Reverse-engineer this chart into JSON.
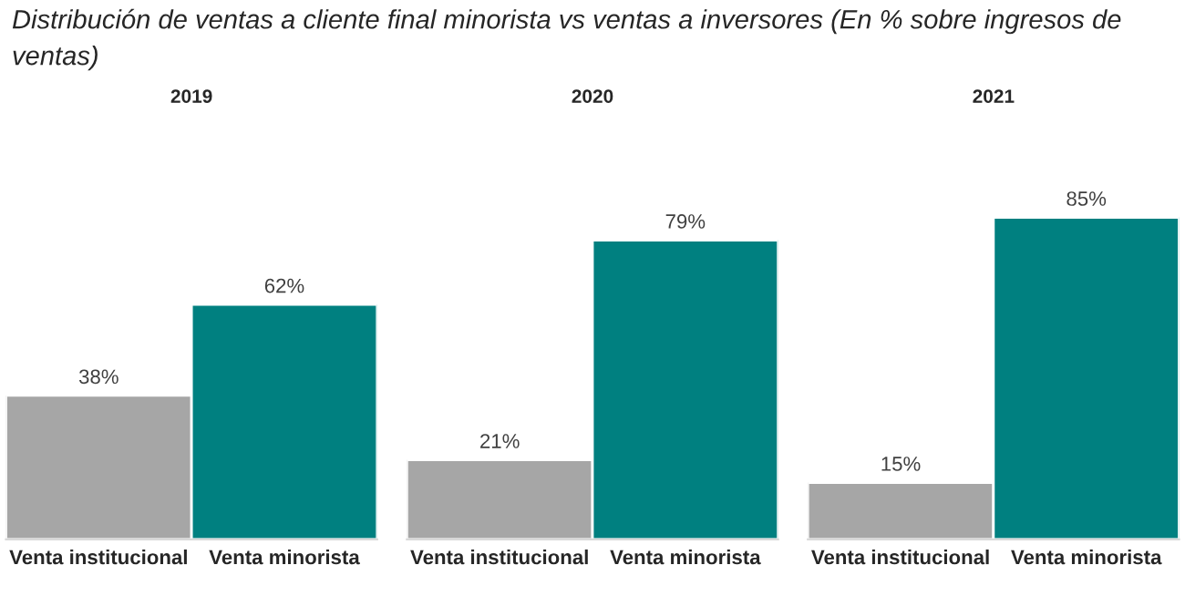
{
  "chart_data": [
    {
      "type": "bar",
      "title": "2019",
      "annotations": [
        "Distribución de ventas a cliente final minorista vs ventas a inversores (En % sobre ingresos de ventas)"
      ],
      "categories": [
        "Venta institucional",
        "Venta minorista"
      ],
      "values": [
        38,
        62
      ],
      "colors": [
        "#a6a6a6",
        "#008080"
      ],
      "value_labels": [
        "38%",
        "62%"
      ]
    },
    {
      "type": "bar",
      "title": "2020",
      "categories": [
        "Venta institucional",
        "Venta minorista"
      ],
      "values": [
        21,
        79
      ],
      "colors": [
        "#a6a6a6",
        "#008080"
      ],
      "value_labels": [
        "21%",
        "79%"
      ]
    },
    {
      "type": "bar",
      "title": "2021",
      "categories": [
        "Venta institucional",
        "Venta minorista"
      ],
      "values": [
        15,
        85
      ],
      "colors": [
        "#a6a6a6",
        "#008080"
      ],
      "value_labels": [
        "15%",
        "85%"
      ]
    }
  ]
}
